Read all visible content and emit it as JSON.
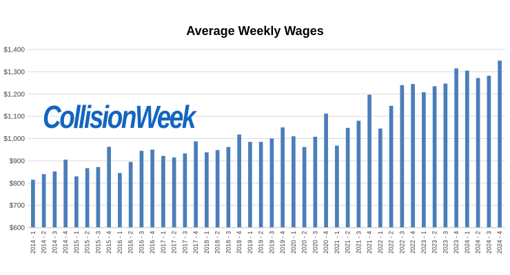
{
  "watermark": {
    "text": "CollisionWeek",
    "color": "#1565c0",
    "outline": "#ffffff"
  },
  "colors": {
    "bar": "#4a7ebb",
    "grid": "#d9d9d9"
  },
  "chart_data": {
    "type": "bar",
    "title": "Average Weekly Wages",
    "xlabel": "",
    "ylabel": "",
    "ylim": [
      600,
      1400
    ],
    "y_ticks": [
      600,
      700,
      800,
      900,
      1000,
      1100,
      1200,
      1300,
      1400
    ],
    "y_tick_labels": [
      "$600",
      "$700",
      "$800",
      "$900",
      "$1,000",
      "$1,100",
      "$1,200",
      "$1,300",
      "$1,400"
    ],
    "grid": true,
    "legend": "none",
    "categories": [
      "2014 - 1",
      "2014 - 2",
      "2014 - 3",
      "2014 - 4",
      "2015 - 1",
      "2015 - 2",
      "2015 - 3",
      "2015 - 4",
      "2016 - 1",
      "2016 - 2",
      "2016 - 3",
      "2016 - 4",
      "2017 - 1",
      "2017 - 2",
      "2017 - 3",
      "2017 - 4",
      "2018 - 1",
      "2018 - 2",
      "2018 - 3",
      "2018 - 4",
      "2019 - 1",
      "2019 - 2",
      "2019 - 3",
      "2019 - 4",
      "2020 - 1",
      "2020 - 2",
      "2020 - 3",
      "2020 - 4",
      "2021 - 1",
      "2021 - 2",
      "2021 - 3",
      "2021 - 4",
      "2022 - 1",
      "2022 - 2",
      "2022 - 3",
      "2022 - 4",
      "2023 - 1",
      "2023 - 2",
      "2023 - 3",
      "2023 - 4",
      "2024 - 1",
      "2024 - 2",
      "2024 - 3",
      "2024 - 4"
    ],
    "values": [
      815,
      840,
      852,
      905,
      830,
      867,
      872,
      963,
      845,
      895,
      945,
      950,
      922,
      915,
      933,
      987,
      938,
      948,
      962,
      1018,
      985,
      985,
      1000,
      1050,
      1010,
      962,
      1008,
      1112,
      968,
      1048,
      1080,
      1197,
      1045,
      1147,
      1240,
      1245,
      1208,
      1235,
      1247,
      1315,
      1305,
      1272,
      1282,
      1350
    ]
  }
}
